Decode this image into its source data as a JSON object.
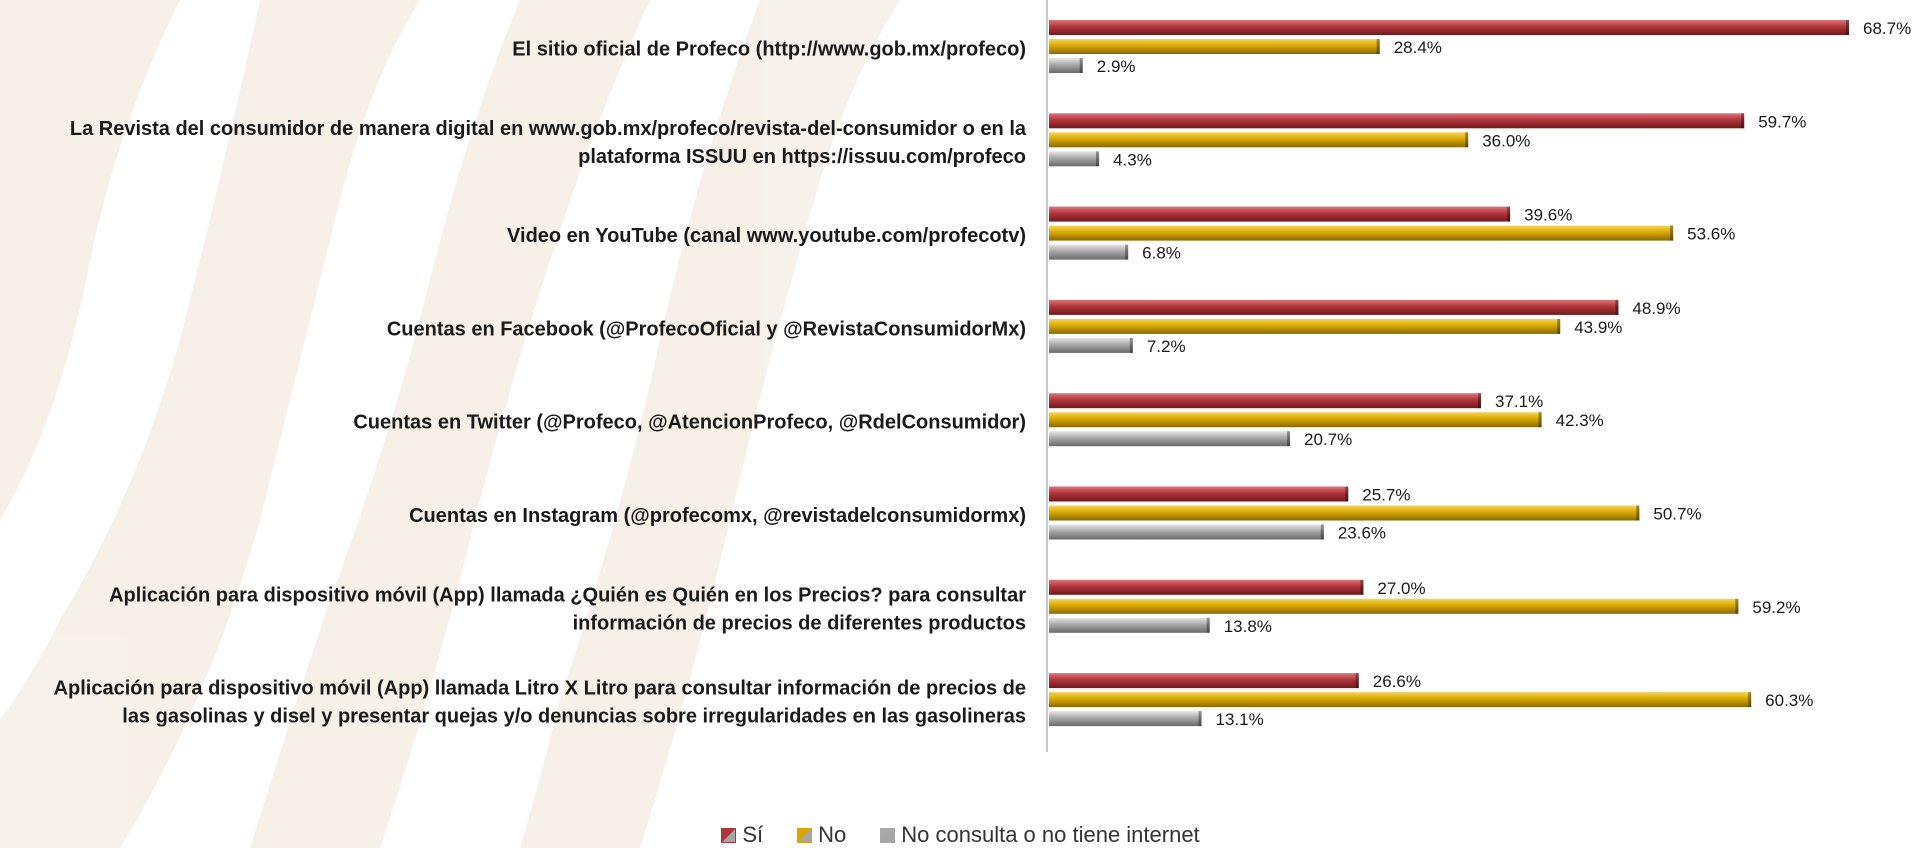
{
  "chart_data": {
    "type": "bar",
    "orientation": "horizontal",
    "categories": [
      [
        "El sitio oficial de Profeco (http://www.gob.mx/profeco)"
      ],
      [
        "La Revista del consumidor de manera digital en www.gob.mx/profeco/revista-del-consumidor o en la",
        "plataforma ISSUU en https://issuu.com/profeco"
      ],
      [
        "Video en YouTube (canal www.youtube.com/profecotv)"
      ],
      [
        "Cuentas en Facebook (@ProfecoOficial y @RevistaConsumidorMx)"
      ],
      [
        "Cuentas en Twitter (@Profeco, @AtencionProfeco, @RdelConsumidor)"
      ],
      [
        "Cuentas en Instagram (@profecomx, @revistadelconsumidormx)"
      ],
      [
        "Aplicación para dispositivo móvil (App) llamada ¿Quién es Quién en los Precios? para consultar",
        "información de precios de diferentes productos"
      ],
      [
        "Aplicación para dispositivo móvil (App) llamada Litro X Litro para consultar información de precios de",
        "las gasolinas y disel y presentar quejas y/o denuncias sobre irregularidades en las gasolineras"
      ]
    ],
    "series": [
      {
        "name": "Sí",
        "color": "#b0343a",
        "values": [
          68.7,
          59.7,
          39.6,
          48.9,
          37.1,
          25.7,
          27.0,
          26.6
        ],
        "labels": [
          "68.7%",
          "59.7%",
          "39.6%",
          "48.9%",
          "37.1%",
          "25.7%",
          "27.0%",
          "26.6%"
        ]
      },
      {
        "name": "No",
        "color": "#d8a800",
        "values": [
          28.4,
          36.0,
          53.6,
          43.9,
          42.3,
          50.7,
          59.2,
          60.3
        ],
        "labels": [
          "28.4%",
          "36.0%",
          "53.6%",
          "43.9%",
          "42.3%",
          "50.7%",
          "59.2%",
          "60.3%"
        ]
      },
      {
        "name": "No consulta o no tiene internet",
        "color": "#a8a8a8",
        "values": [
          2.9,
          4.3,
          6.8,
          7.2,
          20.7,
          23.6,
          13.8,
          13.1
        ],
        "labels": [
          "2.9%",
          "4.3%",
          "6.8%",
          "7.2%",
          "20.7%",
          "23.6%",
          "13.8%",
          "13.1%"
        ]
      }
    ],
    "xlim": [
      0,
      70
    ],
    "grid": false,
    "legend_position": "bottom-center",
    "title": "",
    "xlabel": "",
    "ylabel": ""
  }
}
